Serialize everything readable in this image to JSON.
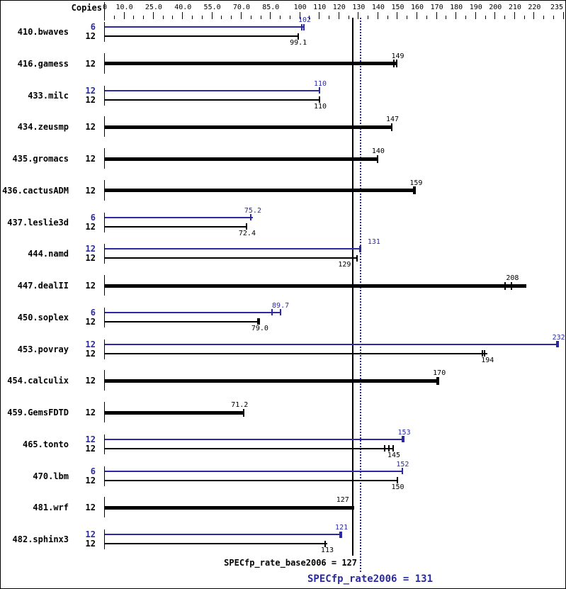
{
  "copies_header": "Copies",
  "chart_data": {
    "type": "bar",
    "orientation": "horizontal",
    "axis": {
      "min": 0,
      "max": 235,
      "minor_tick_step": 5,
      "labels": [
        "0",
        "10.0",
        "25.0",
        "40.0",
        "55.0",
        "70.0",
        "85.0",
        "100",
        "110",
        "120",
        "130",
        "140",
        "150",
        "160",
        "170",
        "180",
        "190",
        "200",
        "210",
        "220",
        "235"
      ],
      "label_values": [
        0,
        10,
        25,
        40,
        55,
        70,
        85,
        100,
        110,
        120,
        130,
        140,
        150,
        160,
        170,
        180,
        190,
        200,
        210,
        220,
        235
      ]
    },
    "colors": {
      "peak": "#2b2aa2",
      "base": "#000000"
    },
    "benchmarks": [
      {
        "name": "410.bwaves",
        "bars": [
          {
            "copies": "6",
            "kind": "peak",
            "label": "102",
            "value": 102,
            "ticks": [
              100.8,
              102
            ],
            "bar_to": 102.3
          },
          {
            "copies": "12",
            "kind": "base",
            "label": "99.1",
            "value": 99.1,
            "ticks": [
              99.1
            ],
            "bar_to": 99.1
          }
        ]
      },
      {
        "name": "416.gamess",
        "bars": [
          {
            "copies": "12",
            "kind": "base",
            "label": "149",
            "value": 149,
            "ticks": [
              148,
              149.3
            ],
            "bar_to": 150
          }
        ]
      },
      {
        "name": "433.milc",
        "bars": [
          {
            "copies": "12",
            "kind": "peak",
            "label": "110",
            "value": 110,
            "ticks": [
              110
            ],
            "bar_to": 110.3
          },
          {
            "copies": "12",
            "kind": "base",
            "label": "110",
            "value": 110,
            "ticks": [
              110
            ],
            "bar_to": 110.3
          }
        ]
      },
      {
        "name": "434.zeusmp",
        "bars": [
          {
            "copies": "12",
            "kind": "base",
            "label": "147",
            "value": 147,
            "ticks": [
              147
            ],
            "bar_to": 147.3
          }
        ]
      },
      {
        "name": "435.gromacs",
        "bars": [
          {
            "copies": "12",
            "kind": "base",
            "label": "140",
            "value": 140,
            "ticks": [
              139.7
            ],
            "bar_to": 140
          }
        ]
      },
      {
        "name": "436.cactusADM",
        "bars": [
          {
            "copies": "12",
            "kind": "base",
            "label": "159",
            "value": 159,
            "ticks": [
              158,
              159
            ],
            "bar_to": 159.4
          }
        ]
      },
      {
        "name": "437.leslie3d",
        "bars": [
          {
            "copies": "6",
            "kind": "peak",
            "label": "75.2",
            "value": 75.2,
            "ticks": [
              74.8
            ],
            "bar_to": 75.8
          },
          {
            "copies": "12",
            "kind": "base",
            "label": "72.4",
            "value": 72.4,
            "ticks": [
              72.4
            ],
            "bar_to": 72.9
          }
        ]
      },
      {
        "name": "444.namd",
        "bars": [
          {
            "copies": "12",
            "kind": "peak",
            "label": "131",
            "value": 131,
            "ticks": [
              130.5,
              131
            ],
            "bar_to": 131.3,
            "label_dx": 18
          },
          {
            "copies": "12",
            "kind": "base",
            "label": "129",
            "value": 129,
            "ticks": [
              129
            ],
            "bar_to": 129.3,
            "label_dx": -18
          }
        ]
      },
      {
        "name": "447.dealII",
        "bars": [
          {
            "copies": "12",
            "kind": "base",
            "label": "208",
            "value": 208,
            "ticks": [
              204.9,
              208.4
            ],
            "bar_to": 216,
            "label_dx": -20
          }
        ]
      },
      {
        "name": "450.soplex",
        "bars": [
          {
            "copies": "6",
            "kind": "peak",
            "label": "89.7",
            "value": 89.7,
            "ticks": [
              85.6,
              89.9
            ],
            "bar_to": 90
          },
          {
            "copies": "12",
            "kind": "base",
            "label": "79.0",
            "value": 79,
            "ticks": [
              78.2,
              79
            ],
            "bar_to": 79.4
          }
        ]
      },
      {
        "name": "453.povray",
        "bars": [
          {
            "copies": "12",
            "kind": "peak",
            "label": "232",
            "value": 232,
            "ticks": [
              231.3,
              232.2
            ],
            "bar_to": 232.4
          },
          {
            "copies": "12",
            "kind": "base",
            "label": "194",
            "value": 194,
            "ticks": [
              193.3,
              194.6
            ],
            "bar_to": 196
          }
        ]
      },
      {
        "name": "454.calculix",
        "bars": [
          {
            "copies": "12",
            "kind": "base",
            "label": "170",
            "value": 170,
            "ticks": [
              170,
              171
            ],
            "bar_to": 171.3
          }
        ]
      },
      {
        "name": "459.GemsFDTD",
        "bars": [
          {
            "copies": "12",
            "kind": "base",
            "label": "71.2",
            "value": 71.2,
            "ticks": [
              71.2
            ],
            "bar_to": 71.2,
            "label_dx": -6
          }
        ]
      },
      {
        "name": "465.tonto",
        "bars": [
          {
            "copies": "12",
            "kind": "peak",
            "label": "153",
            "value": 153,
            "ticks": [
              152.4,
              153
            ],
            "bar_to": 153.3
          },
          {
            "copies": "12",
            "kind": "base",
            "label": "145",
            "value": 145,
            "ticks": [
              143.3,
              145.5,
              147.8
            ],
            "bar_to": 148
          }
        ]
      },
      {
        "name": "470.lbm",
        "bars": [
          {
            "copies": "6",
            "kind": "peak",
            "label": "152",
            "value": 152,
            "ticks": [
              152.3
            ],
            "bar_to": 152.5
          },
          {
            "copies": "12",
            "kind": "base",
            "label": "150",
            "value": 150,
            "ticks": [
              149.8
            ],
            "bar_to": 150
          }
        ]
      },
      {
        "name": "481.wrf",
        "bars": [
          {
            "copies": "12",
            "kind": "base",
            "label": "127",
            "value": 127,
            "ticks": [
              127
            ],
            "bar_to": 127.6,
            "label_dx": -16
          }
        ]
      },
      {
        "name": "482.sphinx3",
        "bars": [
          {
            "copies": "12",
            "kind": "peak",
            "label": "121",
            "value": 121,
            "ticks": [
              120.5,
              121
            ],
            "bar_to": 121.2
          },
          {
            "copies": "12",
            "kind": "base",
            "label": "113",
            "value": 113,
            "ticks": [
              113
            ],
            "bar_to": 113.9
          }
        ]
      }
    ],
    "summary": {
      "base": {
        "text": "SPECfp_rate_base2006 = 127",
        "value": 127
      },
      "peak": {
        "text": "SPECfp_rate2006 = 131",
        "value": 131
      }
    }
  }
}
